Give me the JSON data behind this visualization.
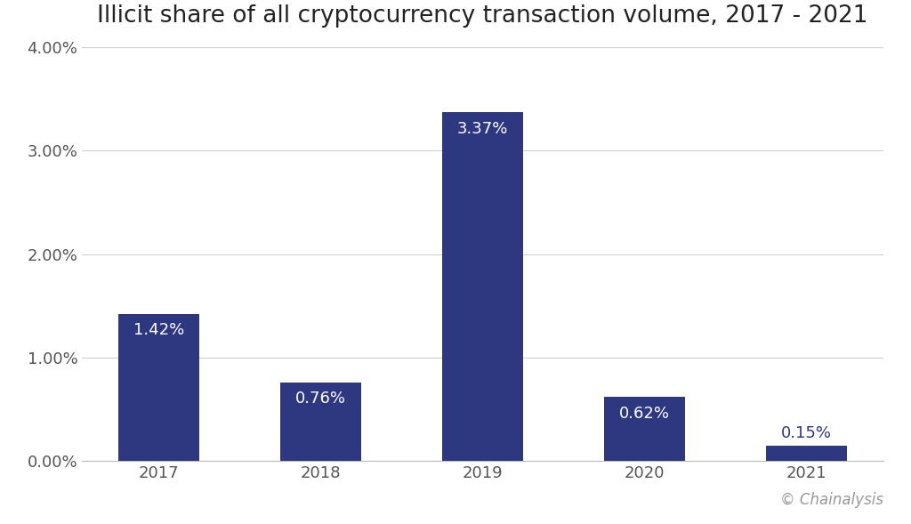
{
  "title": "Illicit share of all cryptocurrency transaction volume, 2017 - 2021",
  "categories": [
    "2017",
    "2018",
    "2019",
    "2020",
    "2021"
  ],
  "values": [
    1.42,
    0.76,
    3.37,
    0.62,
    0.15
  ],
  "bar_color": "#2e3880",
  "label_color_white": "#ffffff",
  "label_color_dark": "#2e3880",
  "background_color": "#ffffff",
  "ylim": [
    0,
    4.0
  ],
  "yticks": [
    0.0,
    1.0,
    2.0,
    3.0,
    4.0
  ],
  "ytick_labels": [
    "0.00%",
    "1.00%",
    "2.00%",
    "3.00%",
    "4.00%"
  ],
  "grid_color": "#d0d0d0",
  "title_fontsize": 19,
  "tick_fontsize": 13,
  "label_fontsize": 13,
  "watermark": "© Chainalysis",
  "watermark_fontsize": 12,
  "watermark_color": "#999999"
}
